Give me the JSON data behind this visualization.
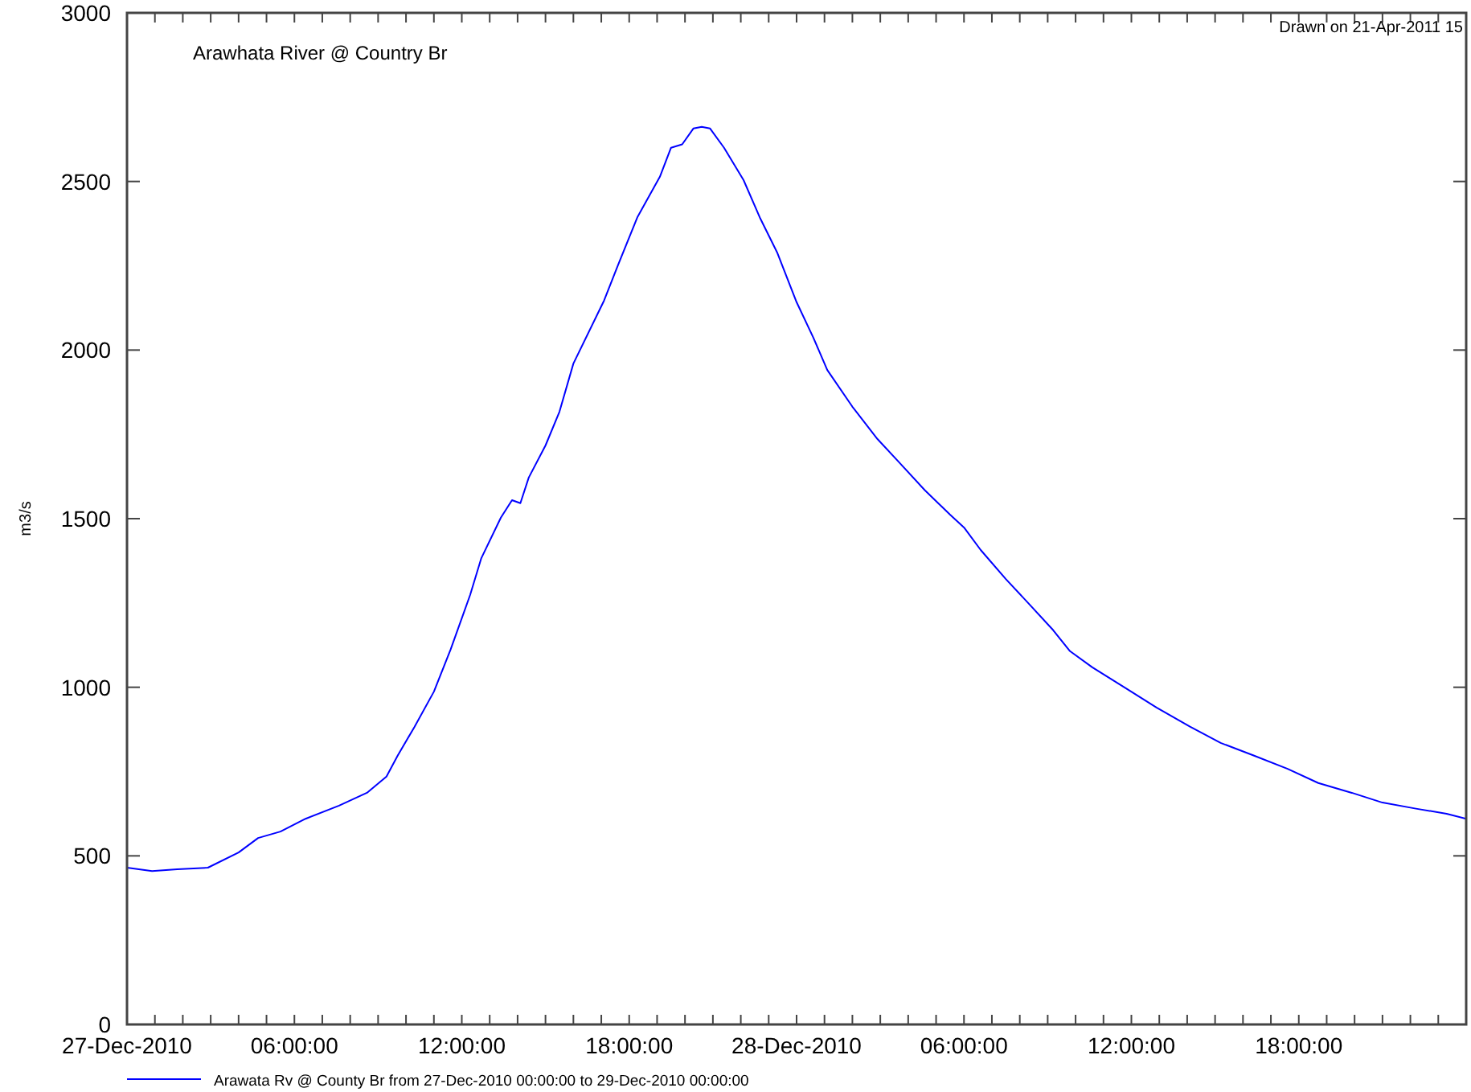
{
  "chart_data": {
    "type": "line",
    "title": "Arawhata River @ Country Br",
    "ylabel": "m3/s",
    "annotations": [
      "Drawn on 21-Apr-2011 15"
    ],
    "legend": "bottom",
    "marker": "none",
    "line_style": "solid",
    "grid": false,
    "xlim": [
      "2010-12-27T00:00",
      "2010-12-29T00:00"
    ],
    "xticks": [
      {
        "value": "2010-12-27T00:00",
        "label": "27-Dec-2010"
      },
      {
        "value": "2010-12-27T01:00",
        "label": null
      },
      {
        "value": "2010-12-27T02:00",
        "label": null
      },
      {
        "value": "2010-12-27T03:00",
        "label": null
      },
      {
        "value": "2010-12-27T04:00",
        "label": null
      },
      {
        "value": "2010-12-27T05:00",
        "label": null
      },
      {
        "value": "2010-12-27T06:00",
        "label": "06:00:00"
      },
      {
        "value": "2010-12-27T07:00",
        "label": null
      },
      {
        "value": "2010-12-27T08:00",
        "label": null
      },
      {
        "value": "2010-12-27T09:00",
        "label": null
      },
      {
        "value": "2010-12-27T10:00",
        "label": null
      },
      {
        "value": "2010-12-27T11:00",
        "label": null
      },
      {
        "value": "2010-12-27T12:00",
        "label": "12:00:00"
      },
      {
        "value": "2010-12-27T13:00",
        "label": null
      },
      {
        "value": "2010-12-27T14:00",
        "label": null
      },
      {
        "value": "2010-12-27T15:00",
        "label": null
      },
      {
        "value": "2010-12-27T16:00",
        "label": null
      },
      {
        "value": "2010-12-27T17:00",
        "label": null
      },
      {
        "value": "2010-12-27T18:00",
        "label": "18:00:00"
      },
      {
        "value": "2010-12-27T19:00",
        "label": null
      },
      {
        "value": "2010-12-27T20:00",
        "label": null
      },
      {
        "value": "2010-12-27T21:00",
        "label": null
      },
      {
        "value": "2010-12-27T22:00",
        "label": null
      },
      {
        "value": "2010-12-27T23:00",
        "label": null
      },
      {
        "value": "2010-12-28T00:00",
        "label": "28-Dec-2010"
      },
      {
        "value": "2010-12-28T01:00",
        "label": null
      },
      {
        "value": "2010-12-28T02:00",
        "label": null
      },
      {
        "value": "2010-12-28T03:00",
        "label": null
      },
      {
        "value": "2010-12-28T04:00",
        "label": null
      },
      {
        "value": "2010-12-28T05:00",
        "label": null
      },
      {
        "value": "2010-12-28T06:00",
        "label": "06:00:00"
      },
      {
        "value": "2010-12-28T07:00",
        "label": null
      },
      {
        "value": "2010-12-28T08:00",
        "label": null
      },
      {
        "value": "2010-12-28T09:00",
        "label": null
      },
      {
        "value": "2010-12-28T10:00",
        "label": null
      },
      {
        "value": "2010-12-28T11:00",
        "label": null
      },
      {
        "value": "2010-12-28T12:00",
        "label": "12:00:00"
      },
      {
        "value": "2010-12-28T13:00",
        "label": null
      },
      {
        "value": "2010-12-28T14:00",
        "label": null
      },
      {
        "value": "2010-12-28T15:00",
        "label": null
      },
      {
        "value": "2010-12-28T16:00",
        "label": null
      },
      {
        "value": "2010-12-28T17:00",
        "label": null
      },
      {
        "value": "2010-12-28T18:00",
        "label": "18:00:00"
      },
      {
        "value": "2010-12-28T19:00",
        "label": null
      },
      {
        "value": "2010-12-28T20:00",
        "label": null
      },
      {
        "value": "2010-12-28T21:00",
        "label": null
      },
      {
        "value": "2010-12-28T22:00",
        "label": null
      },
      {
        "value": "2010-12-28T23:00",
        "label": null
      }
    ],
    "ylim": [
      0,
      3000
    ],
    "yticks": [
      0,
      500,
      1000,
      1500,
      2000,
      2500,
      3000
    ],
    "series": [
      {
        "name": "Arawata Rv @ County Br from 27-Dec-2010 00:00:00 to 29-Dec-2010 00:00:00",
        "color": "#0000ff",
        "x": [
          "2010-12-27T00:00",
          "2010-12-27T00:54",
          "2010-12-27T01:48",
          "2010-12-27T02:54",
          "2010-12-27T04:00",
          "2010-12-27T04:42",
          "2010-12-27T05:30",
          "2010-12-27T06:24",
          "2010-12-27T07:36",
          "2010-12-27T08:36",
          "2010-12-27T09:18",
          "2010-12-27T09:42",
          "2010-12-27T10:18",
          "2010-12-27T11:00",
          "2010-12-27T11:36",
          "2010-12-27T12:18",
          "2010-12-27T12:42",
          "2010-12-27T13:24",
          "2010-12-27T13:48",
          "2010-12-27T14:06",
          "2010-12-27T14:24",
          "2010-12-27T15:00",
          "2010-12-27T15:30",
          "2010-12-27T16:00",
          "2010-12-27T17:06",
          "2010-12-27T17:36",
          "2010-12-27T18:18",
          "2010-12-27T19:06",
          "2010-12-27T19:30",
          "2010-12-27T19:54",
          "2010-12-27T20:18",
          "2010-12-27T20:36",
          "2010-12-27T20:54",
          "2010-12-27T21:24",
          "2010-12-27T22:06",
          "2010-12-27T22:42",
          "2010-12-27T23:18",
          "2010-12-28T00:00",
          "2010-12-28T00:36",
          "2010-12-28T01:06",
          "2010-12-28T02:00",
          "2010-12-28T02:54",
          "2010-12-28T03:42",
          "2010-12-28T04:36",
          "2010-12-28T05:30",
          "2010-12-28T06:00",
          "2010-12-28T06:36",
          "2010-12-28T07:30",
          "2010-12-28T08:18",
          "2010-12-28T09:12",
          "2010-12-28T09:48",
          "2010-12-28T10:36",
          "2010-12-28T11:48",
          "2010-12-28T12:54",
          "2010-12-28T14:06",
          "2010-12-28T15:12",
          "2010-12-28T16:24",
          "2010-12-28T17:36",
          "2010-12-28T18:42",
          "2010-12-28T19:54",
          "2010-12-28T21:00",
          "2010-12-28T22:12",
          "2010-12-28T23:18",
          "2010-12-29T00:00"
        ],
        "values": [
          465,
          455,
          460,
          465,
          510,
          553,
          572,
          610,
          649,
          687,
          735,
          797,
          882,
          987,
          1112,
          1274,
          1383,
          1503,
          1555,
          1546,
          1622,
          1717,
          1817,
          1960,
          2147,
          2252,
          2395,
          2514,
          2600,
          2610,
          2657,
          2662,
          2657,
          2600,
          2504,
          2390,
          2290,
          2142,
          2037,
          1941,
          1832,
          1736,
          1665,
          1584,
          1512,
          1474,
          1407,
          1321,
          1250,
          1169,
          1107,
          1059,
          997,
          940,
          883,
          835,
          797,
          758,
          716,
          687,
          658,
          640,
          625,
          610
        ]
      }
    ]
  }
}
